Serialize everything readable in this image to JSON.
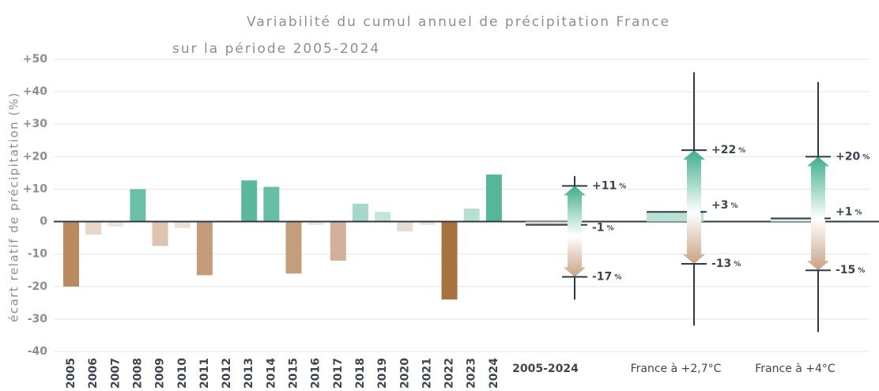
{
  "chart_data": {
    "type": "bar",
    "title": "Variabilité du cumul annuel de précipitation France",
    "subtitle": "sur la période 2005-2024",
    "y_label": "écart relatif de précipitation (%)",
    "categories": [
      "2005",
      "2006",
      "2007",
      "2008",
      "2009",
      "2010",
      "2011",
      "2012",
      "2013",
      "2014",
      "2015",
      "2016",
      "2017",
      "2018",
      "2019",
      "2020",
      "2021",
      "2022",
      "2023",
      "2024"
    ],
    "values": [
      -20,
      -4,
      -1.5,
      10,
      -7.5,
      -2,
      -16.5,
      0.5,
      12.7,
      10.7,
      -16,
      -1,
      -12,
      5.5,
      3,
      -3,
      -1,
      -24,
      4,
      14.5
    ],
    "colors": [
      "#b98a5f",
      "#e8d6c8",
      "#f0e4da",
      "#6bbfa6",
      "#dfc3b0",
      "#ede0d6",
      "#c39c7c",
      "#e6f3ef",
      "#5bb89c",
      "#68bea4",
      "#c49d7d",
      "#efe3da",
      "#d2b09a",
      "#a5d8c8",
      "#c4e5db",
      "#eadbd0",
      "#efe3da",
      "#a8723f",
      "#b7e0d3",
      "#55b698"
    ],
    "ylim": [
      -40,
      50
    ],
    "yticks": [
      {
        "value": 50,
        "label": "+50"
      },
      {
        "value": 40,
        "label": "+40"
      },
      {
        "value": 30,
        "label": "+30"
      },
      {
        "value": 20,
        "label": "+20"
      },
      {
        "value": 10,
        "label": "+10"
      },
      0,
      -10,
      -20,
      -30,
      -40
    ],
    "grid": true,
    "value_unit": "%",
    "scenarios": [
      {
        "name": "2005-2024",
        "color": "#d9d9d9",
        "mean": -1,
        "mean_label": "-1",
        "high": 11,
        "high_label": "+11",
        "low": -17,
        "low_label": "-17",
        "max": 14,
        "min": -24
      },
      {
        "name": "France à +2,7°C",
        "color": "#b9e1d4",
        "mean": 3,
        "mean_label": "+3",
        "high": 22,
        "high_label": "+22",
        "low": -13,
        "low_label": "-13",
        "max": 46,
        "min": -32
      },
      {
        "name": "France à +4°C",
        "color": "#d8ece5",
        "mean": 1,
        "mean_label": "+1",
        "high": 20,
        "high_label": "+20",
        "low": -15,
        "low_label": "-15",
        "max": 43,
        "min": -34
      }
    ]
  }
}
